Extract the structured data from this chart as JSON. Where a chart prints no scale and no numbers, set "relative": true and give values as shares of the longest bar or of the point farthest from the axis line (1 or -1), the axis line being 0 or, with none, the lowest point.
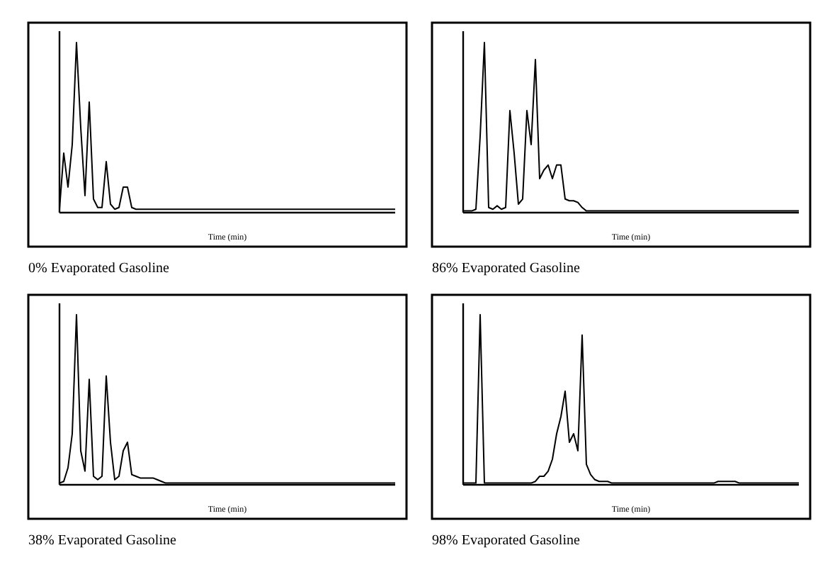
{
  "chart_data": [
    {
      "type": "line",
      "relative": true,
      "title": "0% Evaporated Gasoline",
      "xlabel": "Time (min)",
      "categories": [
        null,
        null,
        null,
        null,
        null,
        null,
        null,
        null,
        null,
        null,
        null,
        null,
        null,
        null,
        null,
        null,
        null,
        null,
        null,
        null,
        null,
        null,
        null,
        null,
        null,
        null,
        null,
        null,
        null,
        null,
        null,
        null,
        null,
        null,
        null,
        null,
        null,
        null,
        null,
        null,
        null,
        null,
        null,
        null,
        null,
        null,
        null,
        null,
        null,
        null,
        null,
        null,
        null,
        null,
        null,
        null,
        null,
        null,
        null,
        null,
        null,
        null,
        null,
        null,
        null,
        null,
        null,
        null,
        null,
        null,
        null,
        null,
        null,
        null,
        null,
        null,
        null,
        null,
        null,
        null
      ],
      "series": [
        {
          "color": "#000000",
          "values": [
            0.02,
            0.35,
            0.15,
            0.4,
            1,
            0.5,
            0.1,
            0.65,
            0.08,
            0.03,
            0.03,
            0.3,
            0.05,
            0.02,
            0.03,
            0.15,
            0.15,
            0.03,
            0.02,
            0.02,
            0.02,
            0.02,
            0.02,
            0.02,
            0.02,
            0.02,
            0.02,
            0.02,
            0.02,
            0.02,
            0.02,
            0.02,
            0.02,
            0.02,
            0.02,
            0.02,
            0.02,
            0.02,
            0.02,
            0.02,
            0.02,
            0.02,
            0.02,
            0.02,
            0.02,
            0.02,
            0.02,
            0.02,
            0.02,
            0.02,
            0.02,
            0.02,
            0.02,
            0.02,
            0.02,
            0.02,
            0.02,
            0.02,
            0.02,
            0.02,
            0.02,
            0.02,
            0.02,
            0.02,
            0.02,
            0.02,
            0.02,
            0.02,
            0.02,
            0.02,
            0.02,
            0.02,
            0.02,
            0.02,
            0.02,
            0.02,
            0.02,
            0.02,
            0.02,
            0.02
          ]
        }
      ]
    },
    {
      "type": "line",
      "relative": true,
      "title": "86% Evaporated Gasoline",
      "xlabel": "Time (min)",
      "categories": [
        null,
        null,
        null,
        null,
        null,
        null,
        null,
        null,
        null,
        null,
        null,
        null,
        null,
        null,
        null,
        null,
        null,
        null,
        null,
        null,
        null,
        null,
        null,
        null,
        null,
        null,
        null,
        null,
        null,
        null,
        null,
        null,
        null,
        null,
        null,
        null,
        null,
        null,
        null,
        null,
        null,
        null,
        null,
        null,
        null,
        null,
        null,
        null,
        null,
        null,
        null,
        null,
        null,
        null,
        null,
        null,
        null,
        null,
        null,
        null,
        null,
        null,
        null,
        null,
        null,
        null,
        null,
        null,
        null,
        null,
        null,
        null,
        null,
        null,
        null,
        null,
        null,
        null,
        null,
        null
      ],
      "series": [
        {
          "color": "#000000",
          "values": [
            0.01,
            0.01,
            0.01,
            0.02,
            0.45,
            1,
            0.03,
            0.02,
            0.04,
            0.02,
            0.03,
            0.6,
            0.35,
            0.05,
            0.08,
            0.6,
            0.4,
            0.9,
            0.2,
            0.25,
            0.28,
            0.2,
            0.28,
            0.28,
            0.08,
            0.07,
            0.07,
            0.06,
            0.03,
            0.01,
            0.01,
            0.01,
            0.01,
            0.01,
            0.01,
            0.01,
            0.01,
            0.01,
            0.01,
            0.01,
            0.01,
            0.01,
            0.01,
            0.01,
            0.01,
            0.01,
            0.01,
            0.01,
            0.01,
            0.01,
            0.01,
            0.01,
            0.01,
            0.01,
            0.01,
            0.01,
            0.01,
            0.01,
            0.01,
            0.01,
            0.01,
            0.01,
            0.01,
            0.01,
            0.01,
            0.01,
            0.01,
            0.01,
            0.01,
            0.01,
            0.01,
            0.01,
            0.01,
            0.01,
            0.01,
            0.01,
            0.01,
            0.01,
            0.01,
            0.01
          ]
        }
      ]
    },
    {
      "type": "line",
      "relative": true,
      "title": "38% Evaporated Gasoline",
      "xlabel": "Time (min)",
      "categories": [
        null,
        null,
        null,
        null,
        null,
        null,
        null,
        null,
        null,
        null,
        null,
        null,
        null,
        null,
        null,
        null,
        null,
        null,
        null,
        null,
        null,
        null,
        null,
        null,
        null,
        null,
        null,
        null,
        null,
        null,
        null,
        null,
        null,
        null,
        null,
        null,
        null,
        null,
        null,
        null,
        null,
        null,
        null,
        null,
        null,
        null,
        null,
        null,
        null,
        null,
        null,
        null,
        null,
        null,
        null,
        null,
        null,
        null,
        null,
        null,
        null,
        null,
        null,
        null,
        null,
        null,
        null,
        null,
        null,
        null,
        null,
        null,
        null,
        null,
        null,
        null,
        null,
        null,
        null,
        null
      ],
      "series": [
        {
          "color": "#000000",
          "values": [
            0.01,
            0.02,
            0.1,
            0.3,
            1,
            0.2,
            0.08,
            0.62,
            0.05,
            0.03,
            0.05,
            0.64,
            0.25,
            0.03,
            0.05,
            0.2,
            0.25,
            0.06,
            0.05,
            0.04,
            0.04,
            0.04,
            0.04,
            0.03,
            0.02,
            0.01,
            0.01,
            0.01,
            0.01,
            0.01,
            0.01,
            0.01,
            0.01,
            0.01,
            0.01,
            0.01,
            0.01,
            0.01,
            0.01,
            0.01,
            0.01,
            0.01,
            0.01,
            0.01,
            0.01,
            0.01,
            0.01,
            0.01,
            0.01,
            0.01,
            0.01,
            0.01,
            0.01,
            0.01,
            0.01,
            0.01,
            0.01,
            0.01,
            0.01,
            0.01,
            0.01,
            0.01,
            0.01,
            0.01,
            0.01,
            0.01,
            0.01,
            0.01,
            0.01,
            0.01,
            0.01,
            0.01,
            0.01,
            0.01,
            0.01,
            0.01,
            0.01,
            0.01,
            0.01,
            0.01
          ]
        }
      ]
    },
    {
      "type": "line",
      "relative": true,
      "title": "98% Evaporated Gasoline",
      "xlabel": "Time (min)",
      "categories": [
        null,
        null,
        null,
        null,
        null,
        null,
        null,
        null,
        null,
        null,
        null,
        null,
        null,
        null,
        null,
        null,
        null,
        null,
        null,
        null,
        null,
        null,
        null,
        null,
        null,
        null,
        null,
        null,
        null,
        null,
        null,
        null,
        null,
        null,
        null,
        null,
        null,
        null,
        null,
        null,
        null,
        null,
        null,
        null,
        null,
        null,
        null,
        null,
        null,
        null,
        null,
        null,
        null,
        null,
        null,
        null,
        null,
        null,
        null,
        null,
        null,
        null,
        null,
        null,
        null,
        null,
        null,
        null,
        null,
        null,
        null,
        null,
        null,
        null,
        null,
        null,
        null,
        null,
        null,
        null
      ],
      "series": [
        {
          "color": "#000000",
          "values": [
            0.01,
            0.01,
            0.01,
            0.01,
            1,
            0.01,
            0.01,
            0.01,
            0.01,
            0.01,
            0.01,
            0.01,
            0.01,
            0.01,
            0.01,
            0.01,
            0.01,
            0.02,
            0.05,
            0.05,
            0.08,
            0.15,
            0.3,
            0.4,
            0.55,
            0.25,
            0.3,
            0.2,
            0.88,
            0.12,
            0.06,
            0.03,
            0.02,
            0.02,
            0.02,
            0.01,
            0.01,
            0.01,
            0.01,
            0.01,
            0.01,
            0.01,
            0.01,
            0.01,
            0.01,
            0.01,
            0.01,
            0.01,
            0.01,
            0.01,
            0.01,
            0.01,
            0.01,
            0.01,
            0.01,
            0.01,
            0.01,
            0.01,
            0.01,
            0.01,
            0.02,
            0.02,
            0.02,
            0.02,
            0.02,
            0.01,
            0.01,
            0.01,
            0.01,
            0.01,
            0.01,
            0.01,
            0.01,
            0.01,
            0.01,
            0.01,
            0.01,
            0.01,
            0.01,
            0.01
          ]
        }
      ]
    }
  ]
}
